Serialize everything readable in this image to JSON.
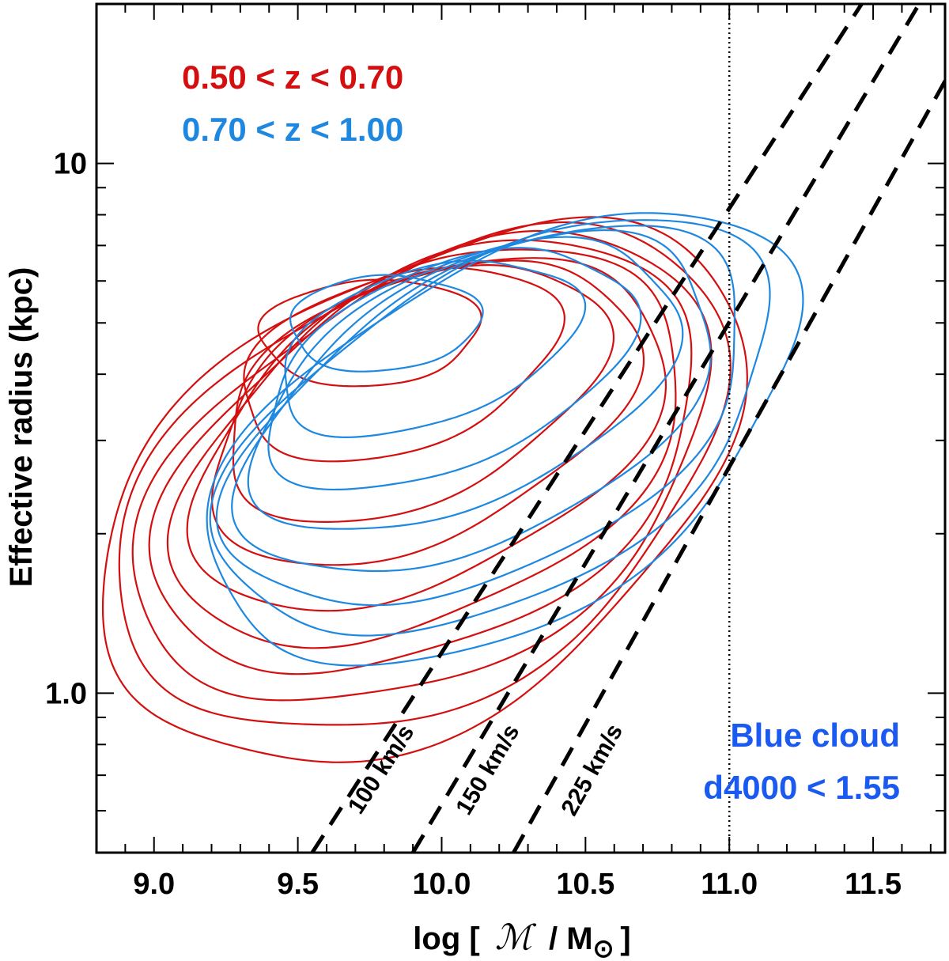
{
  "chart_data": {
    "type": "line",
    "x": {
      "label_prefix": "log [",
      "label_symbol": "ℳ",
      "label_suffix": "/ M",
      "label_sub": "⊙",
      "label_close": "]",
      "range": [
        8.8,
        11.75
      ],
      "ticks": [
        9.0,
        9.5,
        10.0,
        10.5,
        11.0,
        11.5
      ],
      "tick_labels": [
        "9.0",
        "9.5",
        "10.0",
        "10.5",
        "11.0",
        "11.5"
      ]
    },
    "y": {
      "label": "Effective radius (kpc)",
      "scale": "log",
      "range": [
        0.5,
        20.0
      ],
      "ticks": [
        1.0,
        10.0
      ],
      "tick_labels": [
        "1.0",
        "10"
      ]
    },
    "legend": [
      {
        "text": "0.50 < z < 0.70",
        "color": "#d40f0f"
      },
      {
        "text": "0.70 < z < 1.00",
        "color": "#1e88e0"
      }
    ],
    "annotation": {
      "lines": [
        "Blue cloud",
        "d4000 < 1.55"
      ],
      "color": "#1a5af0",
      "position": "bottom-right"
    },
    "vertical_line": {
      "x": 11.0,
      "style": "dotted"
    },
    "velocity_lines": [
      {
        "label": "100 km/s",
        "points": [
          [
            9.55,
            0.5
          ],
          [
            11.46,
            20.0
          ]
        ]
      },
      {
        "label": "150 km/s",
        "points": [
          [
            9.9,
            0.5
          ],
          [
            11.66,
            20.0
          ]
        ]
      },
      {
        "label": "225 km/s",
        "points": [
          [
            10.25,
            0.5
          ],
          [
            11.9,
            20.0
          ]
        ]
      }
    ],
    "series": [
      {
        "name": "0.50 < z < 0.70",
        "color": "#d40f0f",
        "contours": [
          {
            "center": [
              9.75,
              4.8
            ],
            "rx": 0.38,
            "ry": 0.1,
            "tilt": 0.05
          },
          {
            "center": [
              9.85,
              4.2
            ],
            "rx": 0.55,
            "ry": 0.17,
            "tilt": 0.22
          },
          {
            "center": [
              9.9,
              3.7
            ],
            "rx": 0.66,
            "ry": 0.22,
            "tilt": 0.28
          },
          {
            "center": [
              9.93,
              3.4
            ],
            "rx": 0.74,
            "ry": 0.26,
            "tilt": 0.3
          },
          {
            "center": [
              9.95,
              3.1
            ],
            "rx": 0.82,
            "ry": 0.3,
            "tilt": 0.32
          },
          {
            "center": [
              9.96,
              2.9
            ],
            "rx": 0.88,
            "ry": 0.34,
            "tilt": 0.33
          },
          {
            "center": [
              9.96,
              2.75
            ],
            "rx": 0.94,
            "ry": 0.37,
            "tilt": 0.33
          },
          {
            "center": [
              9.95,
              2.6
            ],
            "rx": 1.0,
            "ry": 0.4,
            "tilt": 0.34
          },
          {
            "center": [
              9.94,
              2.5
            ],
            "rx": 1.06,
            "ry": 0.43,
            "tilt": 0.34
          },
          {
            "center": [
              9.93,
              2.4
            ],
            "rx": 1.12,
            "ry": 0.46,
            "tilt": 0.35
          }
        ]
      },
      {
        "name": "0.70 < z < 1.00",
        "color": "#1e88e0",
        "contours": [
          {
            "center": [
              9.8,
              5.0
            ],
            "rx": 0.33,
            "ry": 0.09,
            "tilt": 0.05
          },
          {
            "center": [
              9.95,
              4.5
            ],
            "rx": 0.52,
            "ry": 0.15,
            "tilt": 0.24
          },
          {
            "center": [
              10.02,
              4.1
            ],
            "rx": 0.64,
            "ry": 0.2,
            "tilt": 0.3
          },
          {
            "center": [
              10.08,
              3.8
            ],
            "rx": 0.74,
            "ry": 0.24,
            "tilt": 0.33
          },
          {
            "center": [
              10.13,
              3.5
            ],
            "rx": 0.82,
            "ry": 0.28,
            "tilt": 0.35
          },
          {
            "center": [
              10.17,
              3.3
            ],
            "rx": 0.9,
            "ry": 0.31,
            "tilt": 0.36
          },
          {
            "center": [
              10.2,
              3.15
            ],
            "rx": 0.96,
            "ry": 0.34,
            "tilt": 0.37
          },
          {
            "center": [
              10.22,
              3.0
            ],
            "rx": 1.02,
            "ry": 0.37,
            "tilt": 0.38
          }
        ]
      }
    ]
  }
}
